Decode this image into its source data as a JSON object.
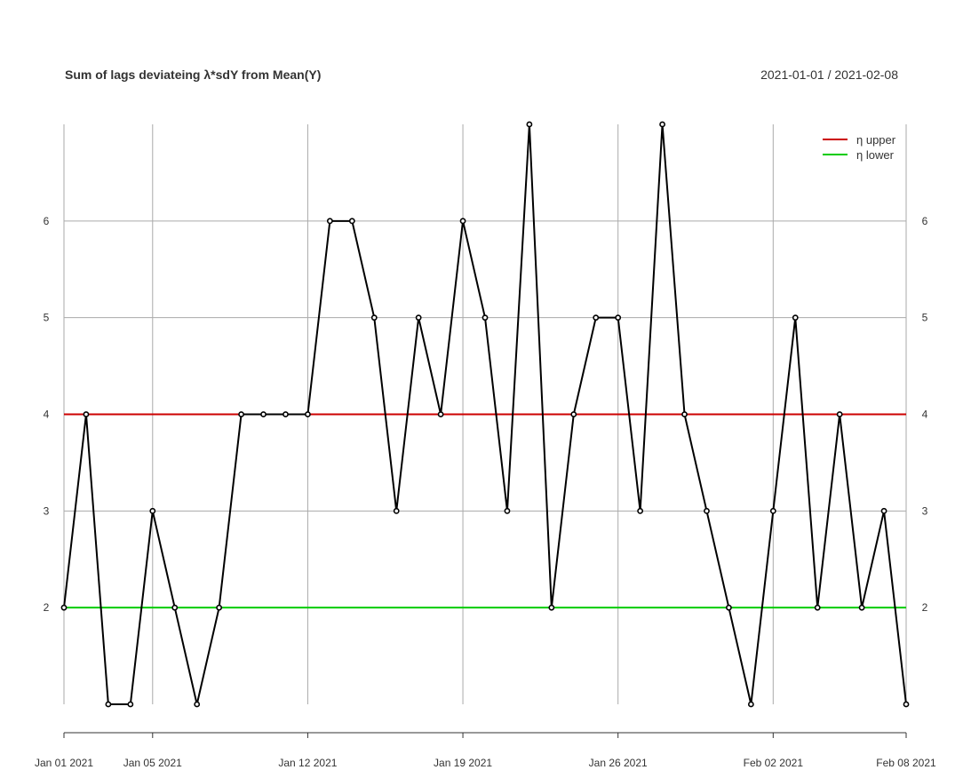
{
  "chart_data": {
    "type": "line",
    "title": "Sum of lags deviateing λ*sdY from Mean(Y)",
    "date_range": "2021-01-01 / 2021-02-08",
    "x_start": "2021-01-01",
    "x": [
      "2021-01-01",
      "2021-01-02",
      "2021-01-03",
      "2021-01-04",
      "2021-01-05",
      "2021-01-06",
      "2021-01-07",
      "2021-01-08",
      "2021-01-09",
      "2021-01-10",
      "2021-01-11",
      "2021-01-12",
      "2021-01-13",
      "2021-01-14",
      "2021-01-15",
      "2021-01-16",
      "2021-01-17",
      "2021-01-18",
      "2021-01-19",
      "2021-01-20",
      "2021-01-21",
      "2021-01-22",
      "2021-01-23",
      "2021-01-24",
      "2021-01-25",
      "2021-01-26",
      "2021-01-27",
      "2021-01-28",
      "2021-01-29",
      "2021-01-30",
      "2021-01-31",
      "2021-02-01",
      "2021-02-02",
      "2021-02-03",
      "2021-02-04",
      "2021-02-05",
      "2021-02-06",
      "2021-02-07",
      "2021-02-08"
    ],
    "series": [
      {
        "values": [
          2,
          4,
          1,
          1,
          3,
          2,
          1,
          2,
          4,
          4,
          4,
          4,
          6,
          6,
          5,
          3,
          5,
          4,
          6,
          5,
          3,
          7,
          2,
          4,
          5,
          5,
          3,
          7,
          4,
          3,
          2,
          1,
          3,
          5,
          2,
          4,
          2,
          3,
          1
        ]
      }
    ],
    "hlines": [
      {
        "name": "η upper",
        "value": 4,
        "color": "#cc0000"
      },
      {
        "name": "η lower",
        "value": 2,
        "color": "#00cc00"
      }
    ],
    "x_ticks": [
      {
        "date": "2021-01-01",
        "label": "Jan 01 2021"
      },
      {
        "date": "2021-01-05",
        "label": "Jan 05 2021"
      },
      {
        "date": "2021-01-12",
        "label": "Jan 12 2021"
      },
      {
        "date": "2021-01-19",
        "label": "Jan 19 2021"
      },
      {
        "date": "2021-01-26",
        "label": "Jan 26 2021"
      },
      {
        "date": "2021-02-02",
        "label": "Feb 02 2021"
      },
      {
        "date": "2021-02-08",
        "label": "Feb 08 2021"
      }
    ],
    "y_ticks": [
      2,
      3,
      4,
      5,
      6
    ],
    "ylim": [
      1,
      7
    ],
    "grid": true,
    "legend_position": "top-right",
    "line_color": "#000000"
  }
}
